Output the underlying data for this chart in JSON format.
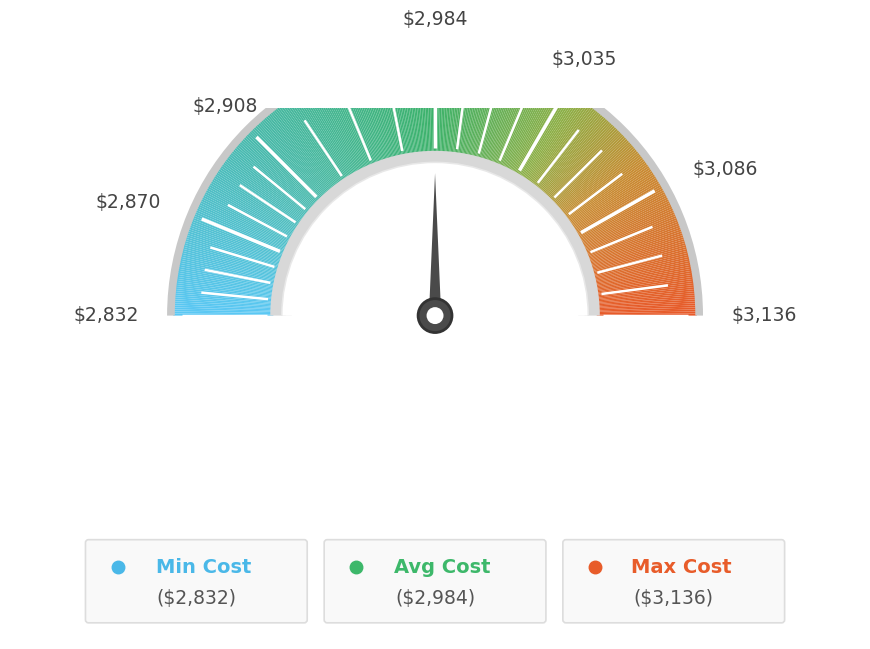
{
  "min_val": 2832,
  "max_val": 3136,
  "avg_val": 2984,
  "tick_labels": [
    "$2,832",
    "$2,870",
    "$2,908",
    "$2,984",
    "$3,035",
    "$3,086",
    "$3,136"
  ],
  "tick_values": [
    2832,
    2870,
    2908,
    2984,
    3035,
    3086,
    3136
  ],
  "background_color": "#ffffff",
  "min_cost_color": "#4ab8e8",
  "avg_cost_color": "#3db86a",
  "max_cost_color": "#e85c2a",
  "needle_color": "#4a4a4a",
  "color_stops": [
    [
      0.0,
      [
        91,
        200,
        245
      ]
    ],
    [
      0.25,
      [
        72,
        185,
        170
      ]
    ],
    [
      0.5,
      [
        61,
        178,
        106
      ]
    ],
    [
      0.68,
      [
        140,
        175,
        70
      ]
    ],
    [
      0.8,
      [
        200,
        140,
        50
      ]
    ],
    [
      1.0,
      [
        232,
        90,
        42
      ]
    ]
  ]
}
